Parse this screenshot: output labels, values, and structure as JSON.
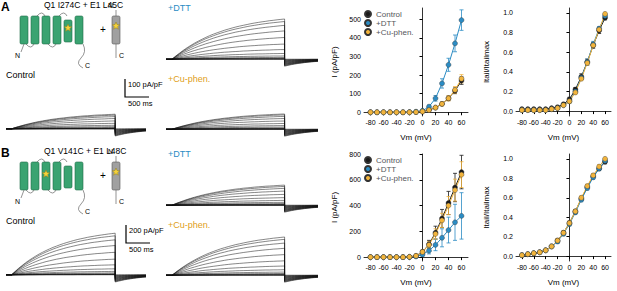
{
  "panels": [
    {
      "label": "A",
      "construct": "Q1 I274C + E1 L45C",
      "cartoon_labels": {
        "n": "N",
        "c": "C",
        "plus": "+"
      },
      "traces": {
        "control": "Control",
        "dtt": "+DTT",
        "cu": "+Cu-phen."
      },
      "scale_bar": {
        "current": "100 pA/pF",
        "time": "500 ms"
      }
    },
    {
      "label": "B",
      "construct": "Q1 V141C + E1 L48C",
      "cartoon_labels": {
        "n": "N",
        "c": "C",
        "plus": "+"
      },
      "traces": {
        "control": "Control",
        "dtt": "+DTT",
        "cu": "+Cu-phen."
      },
      "scale_bar": {
        "current": "200 pA/pF",
        "time": "500 ms"
      }
    }
  ],
  "chart_data": [
    {
      "type": "line",
      "x_label": "Vm (mV)",
      "y_label": "I (pA/pF)",
      "marker": "circle",
      "legend": "top-left",
      "x": [
        -80,
        -70,
        -60,
        -50,
        -40,
        -30,
        -20,
        -10,
        0,
        10,
        20,
        30,
        40,
        50,
        60
      ],
      "xlim": [
        -90,
        70
      ],
      "xticks": [
        -80,
        -60,
        -40,
        -20,
        0,
        20,
        40,
        60
      ],
      "ylim": [
        -20,
        560
      ],
      "yticks": [
        0,
        100,
        200,
        300,
        400,
        500
      ],
      "series": [
        {
          "name": "Control",
          "color": "#1a1a1a",
          "values": [
            0,
            0,
            0,
            0,
            0,
            0,
            0,
            1,
            4,
            12,
            25,
            45,
            75,
            115,
            170
          ],
          "errors": [
            0,
            0,
            0,
            0,
            0,
            0,
            0,
            1,
            2,
            4,
            6,
            8,
            12,
            15,
            20
          ]
        },
        {
          "name": "+DTT",
          "color": "#2b8cc4",
          "values": [
            0,
            0,
            0,
            0,
            0,
            0,
            1,
            3,
            8,
            30,
            75,
            155,
            255,
            370,
            495
          ],
          "errors": [
            0,
            0,
            0,
            0,
            0,
            0,
            1,
            2,
            4,
            8,
            15,
            25,
            35,
            45,
            55
          ]
        },
        {
          "name": "+Cu-phen.",
          "color": "#f2b43c",
          "values": [
            0,
            0,
            0,
            0,
            0,
            0,
            0,
            1,
            4,
            12,
            25,
            45,
            75,
            120,
            180
          ],
          "errors": [
            0,
            0,
            0,
            0,
            0,
            0,
            0,
            1,
            2,
            4,
            6,
            10,
            14,
            18,
            22
          ]
        }
      ]
    },
    {
      "type": "line",
      "x_label": "Vm (mV)",
      "y_label": "Itail/Itailmax",
      "marker": "circle",
      "x": [
        -80,
        -70,
        -60,
        -50,
        -40,
        -30,
        -20,
        -10,
        0,
        10,
        20,
        30,
        40,
        50,
        60
      ],
      "xlim": [
        -90,
        70
      ],
      "xticks": [
        -80,
        -60,
        -40,
        -20,
        0,
        20,
        40,
        60
      ],
      "ylim": [
        -0.05,
        1.05
      ],
      "yticks": [
        {
          "value": 0,
          "label": "0.0"
        },
        0.2,
        0.4,
        0.6,
        0.8,
        {
          "value": 1,
          "label": "1.0"
        }
      ],
      "series": [
        {
          "name": "Control",
          "color": "#1a1a1a",
          "values": [
            0.02,
            0.02,
            0.02,
            0.02,
            0.02,
            0.03,
            0.04,
            0.07,
            0.12,
            0.22,
            0.35,
            0.5,
            0.67,
            0.82,
            0.95
          ],
          "errors": [
            0.01,
            0.01,
            0.01,
            0.01,
            0.01,
            0.01,
            0.01,
            0.01,
            0.02,
            0.02,
            0.03,
            0.03,
            0.03,
            0.03,
            0.02
          ]
        },
        {
          "name": "+DTT",
          "color": "#2b8cc4",
          "values": [
            0.01,
            0.01,
            0.01,
            0.01,
            0.01,
            0.02,
            0.03,
            0.06,
            0.1,
            0.2,
            0.34,
            0.5,
            0.68,
            0.84,
            0.97
          ],
          "errors": [
            0.01,
            0.01,
            0.01,
            0.01,
            0.01,
            0.01,
            0.01,
            0.01,
            0.02,
            0.02,
            0.02,
            0.03,
            0.03,
            0.02,
            0.02
          ]
        },
        {
          "name": "+Cu-phen.",
          "color": "#f2b43c",
          "values": [
            0.01,
            0.01,
            0.01,
            0.01,
            0.01,
            0.02,
            0.03,
            0.06,
            0.1,
            0.19,
            0.33,
            0.49,
            0.67,
            0.83,
            0.99
          ],
          "errors": [
            0.01,
            0.01,
            0.01,
            0.01,
            0.01,
            0.01,
            0.01,
            0.01,
            0.02,
            0.02,
            0.02,
            0.02,
            0.02,
            0.02,
            0.01
          ]
        }
      ]
    },
    {
      "type": "line",
      "x_label": "Vm (mV)",
      "y_label": "I (pA/pF)",
      "marker": "circle",
      "legend": "top-left",
      "x": [
        -80,
        -70,
        -60,
        -50,
        -40,
        -30,
        -20,
        -10,
        0,
        10,
        20,
        30,
        40,
        50,
        60
      ],
      "xlim": [
        -90,
        70
      ],
      "xticks": [
        -80,
        -60,
        -40,
        -20,
        0,
        20,
        40,
        60
      ],
      "ylim": [
        -30,
        800
      ],
      "yticks": [
        0,
        200,
        400,
        600,
        800
      ],
      "series": [
        {
          "name": "Control",
          "color": "#1a1a1a",
          "values": [
            0,
            0,
            0,
            0,
            0,
            0,
            2,
            10,
            40,
            100,
            190,
            300,
            420,
            540,
            660
          ],
          "errors": [
            0,
            0,
            0,
            0,
            0,
            0,
            2,
            5,
            15,
            30,
            50,
            70,
            90,
            110,
            130
          ]
        },
        {
          "name": "+DTT",
          "color": "#2b8cc4",
          "values": [
            0,
            0,
            0,
            0,
            0,
            0,
            1,
            5,
            20,
            50,
            95,
            150,
            210,
            270,
            320
          ],
          "errors": [
            0,
            0,
            0,
            0,
            0,
            0,
            1,
            4,
            12,
            25,
            45,
            70,
            100,
            140,
            180
          ]
        },
        {
          "name": "+Cu-phen.",
          "color": "#f2b43c",
          "values": [
            0,
            0,
            0,
            0,
            0,
            0,
            2,
            10,
            40,
            95,
            180,
            285,
            400,
            520,
            640
          ],
          "errors": [
            0,
            0,
            0,
            0,
            0,
            0,
            2,
            5,
            12,
            25,
            40,
            55,
            70,
            85,
            100
          ]
        }
      ]
    },
    {
      "type": "line",
      "x_label": "Vm (mV)",
      "y_label": "Itail/Itailmax",
      "marker": "circle",
      "x": [
        -80,
        -70,
        -60,
        -50,
        -40,
        -30,
        -20,
        -10,
        0,
        10,
        20,
        30,
        40,
        50,
        60
      ],
      "xlim": [
        -90,
        70
      ],
      "xticks": [
        -80,
        -60,
        -40,
        -20,
        0,
        20,
        40,
        60
      ],
      "ylim": [
        -0.05,
        1.05
      ],
      "yticks": [
        {
          "value": 0,
          "label": "0.0"
        },
        0.2,
        0.4,
        0.6,
        0.8,
        {
          "value": 1,
          "label": "1.0"
        }
      ],
      "series": [
        {
          "name": "Control",
          "color": "#1a1a1a",
          "values": [
            0.01,
            0.02,
            0.03,
            0.04,
            0.06,
            0.1,
            0.16,
            0.24,
            0.34,
            0.46,
            0.59,
            0.71,
            0.82,
            0.9,
            0.97
          ],
          "errors": [
            0.01,
            0.01,
            0.01,
            0.01,
            0.01,
            0.01,
            0.02,
            0.02,
            0.02,
            0.02,
            0.02,
            0.02,
            0.02,
            0.02,
            0.02
          ]
        },
        {
          "name": "+DTT",
          "color": "#2b8cc4",
          "values": [
            0.01,
            0.02,
            0.03,
            0.04,
            0.06,
            0.1,
            0.15,
            0.23,
            0.33,
            0.45,
            0.58,
            0.7,
            0.81,
            0.9,
            0.98
          ],
          "errors": [
            0.01,
            0.01,
            0.01,
            0.01,
            0.01,
            0.01,
            0.02,
            0.02,
            0.02,
            0.02,
            0.02,
            0.02,
            0.02,
            0.02,
            0.02
          ]
        },
        {
          "name": "+Cu-phen.",
          "color": "#f2b43c",
          "values": [
            0.01,
            0.02,
            0.03,
            0.04,
            0.06,
            0.1,
            0.16,
            0.24,
            0.34,
            0.46,
            0.6,
            0.72,
            0.83,
            0.92,
            1.0
          ],
          "errors": [
            0.01,
            0.01,
            0.01,
            0.01,
            0.01,
            0.01,
            0.02,
            0.02,
            0.02,
            0.02,
            0.02,
            0.02,
            0.02,
            0.02,
            0.01
          ]
        }
      ]
    }
  ]
}
